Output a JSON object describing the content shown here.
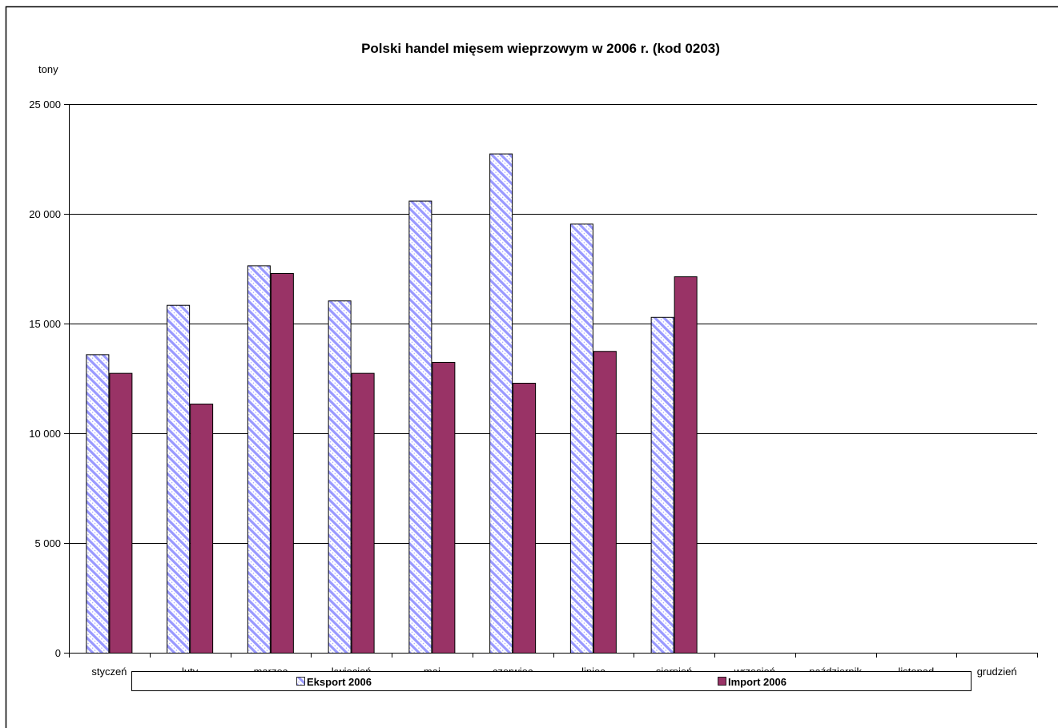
{
  "chart_data": {
    "type": "bar",
    "title": "Polski handel mięsem wieprzowym w 2006 r. (kod 0203)",
    "unit_label": "tony",
    "categories": [
      "styczeń",
      "luty",
      "marzec",
      "kwiecień",
      "maj",
      "czerwiec",
      "lipiec",
      "sierpień",
      "wrzesień",
      "październik",
      "listopad",
      "grudzień"
    ],
    "series": [
      {
        "name": "Eksport 2006",
        "values": [
          13600,
          15850,
          17650,
          16050,
          20600,
          22750,
          19550,
          15300,
          null,
          null,
          null,
          null
        ],
        "color": "#9999ff",
        "pattern": "diagonal-hatch"
      },
      {
        "name": "Import 2006",
        "values": [
          12750,
          11350,
          17300,
          12750,
          13250,
          12300,
          13750,
          17150,
          null,
          null,
          null,
          null
        ],
        "color": "#993366",
        "pattern": "solid"
      }
    ],
    "ylim": [
      0,
      25000
    ],
    "yticks": [
      0,
      5000,
      10000,
      15000,
      20000,
      25000
    ],
    "ytick_labels": [
      "0",
      "5 000",
      "10 000",
      "15 000",
      "20 000",
      "25 000"
    ],
    "grid": true,
    "legend_position": "bottom"
  }
}
